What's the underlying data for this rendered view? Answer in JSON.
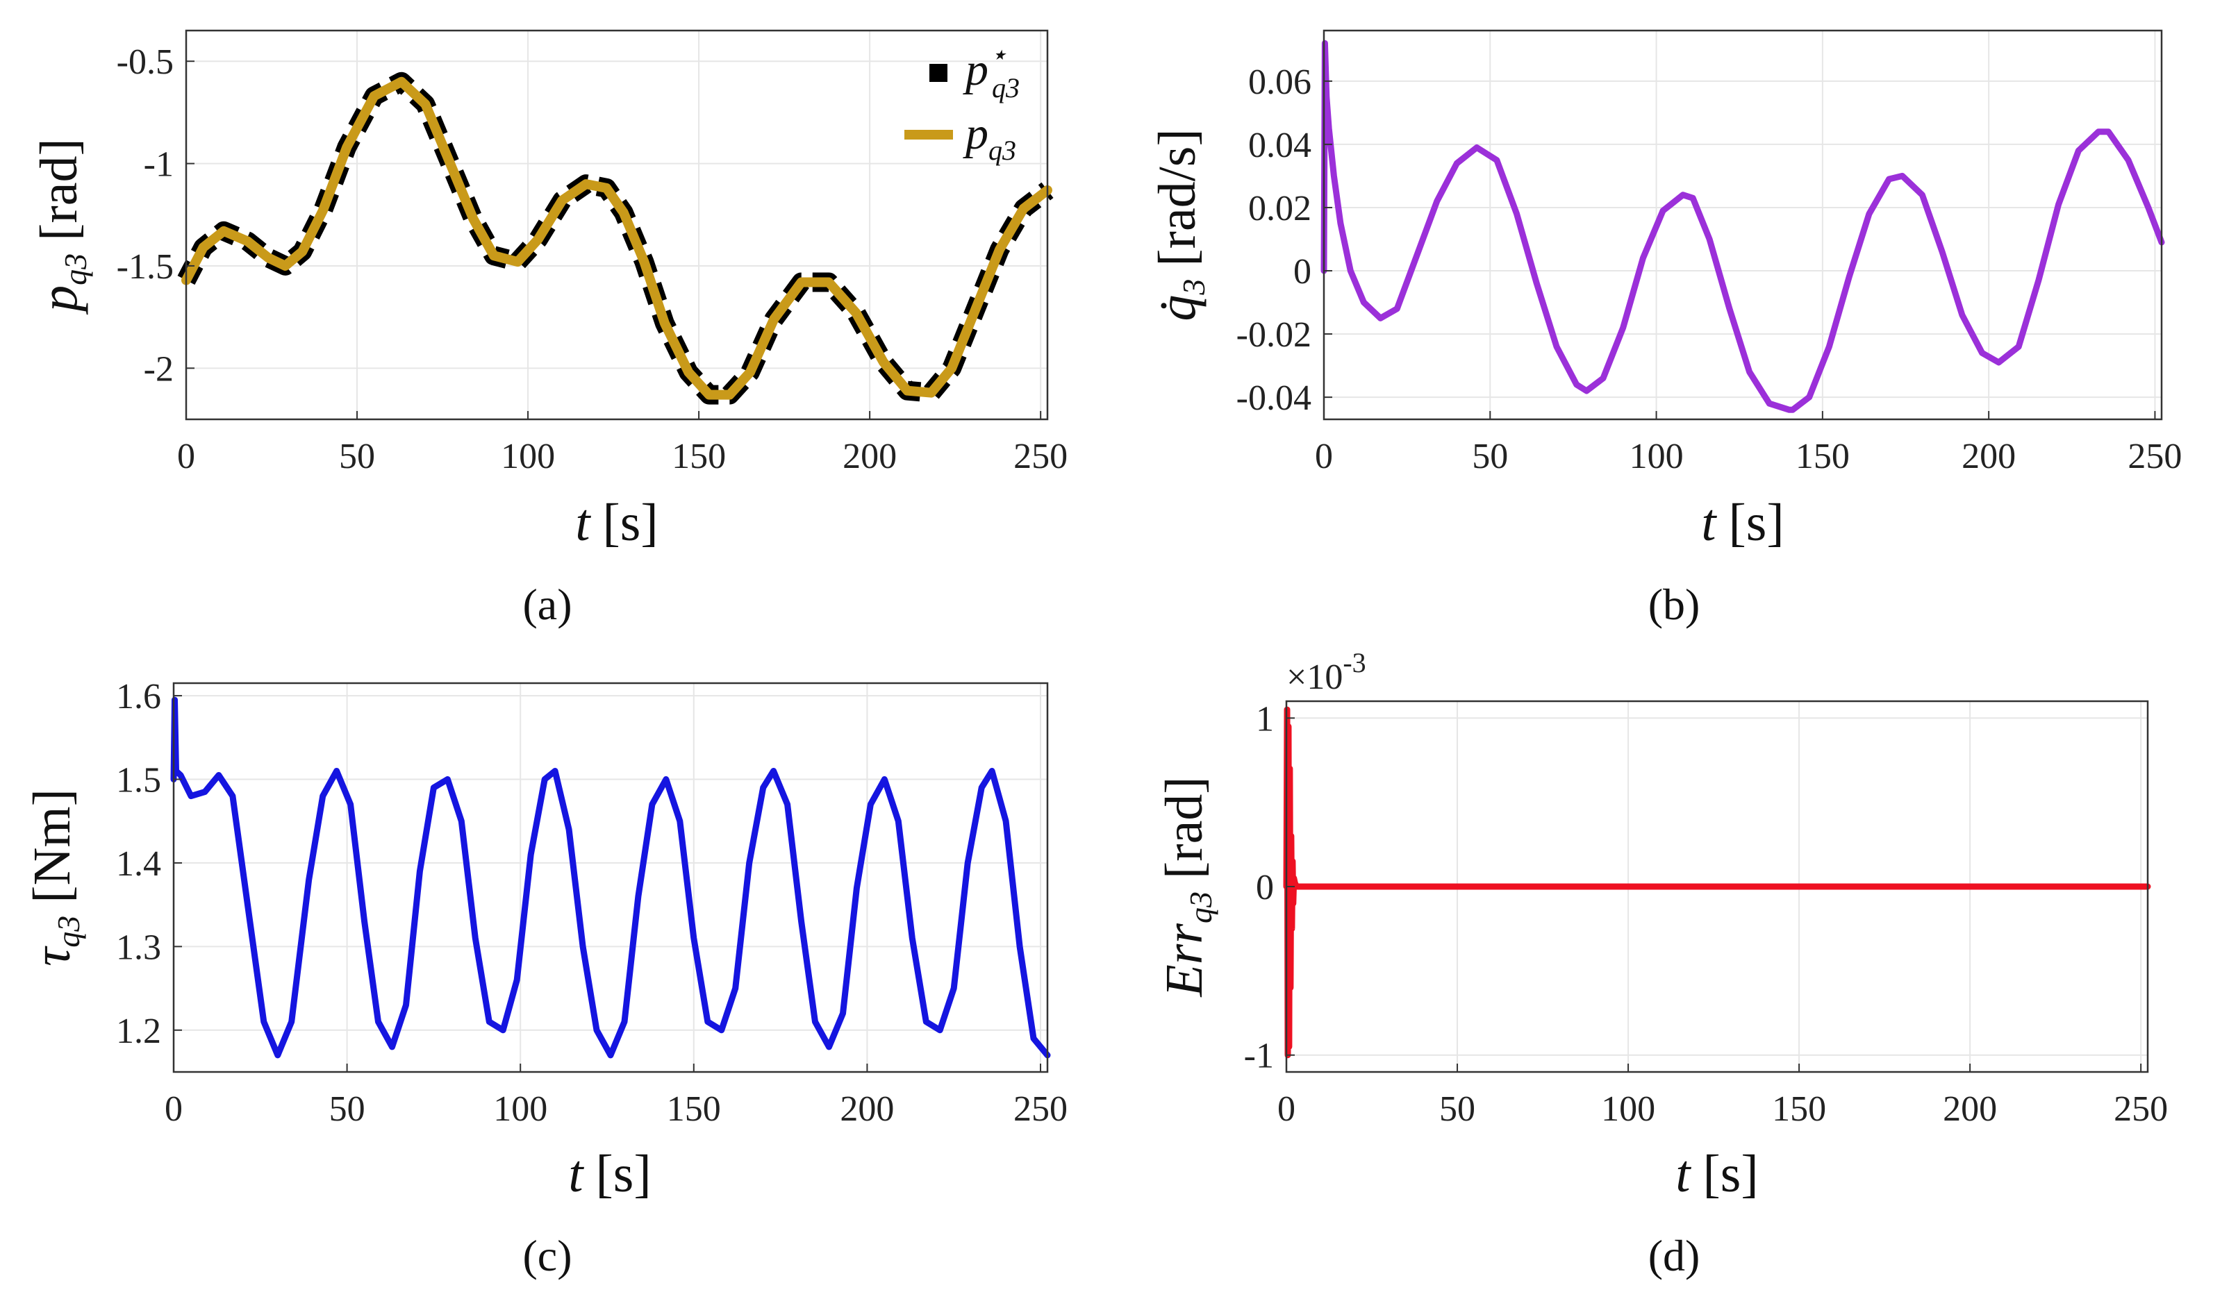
{
  "figure": {
    "captions": [
      "(a)",
      "(b)",
      "(c)",
      "(d)"
    ]
  },
  "chart_data": [
    {
      "id": "a",
      "type": "line",
      "caption": "(a)",
      "xlabel": "t [s]",
      "xlabel_var": "t",
      "xlabel_unit": "[s]",
      "ylabel": "p_q3 [rad]",
      "ylabel_var": "p",
      "ylabel_sub": "q3",
      "ylabel_unit": "[rad]",
      "xlim": [
        0,
        252
      ],
      "ylim": [
        -2.25,
        -0.35
      ],
      "xticks": [
        0,
        50,
        100,
        150,
        200,
        250
      ],
      "xtick_labels": [
        "0",
        "50",
        "100",
        "150",
        "200",
        "250"
      ],
      "yticks": [
        -0.5,
        -1,
        -1.5,
        -2
      ],
      "ytick_labels": [
        "-0.5",
        "-1",
        "-1.5",
        "-2"
      ],
      "grid": true,
      "legend_position": "top-right",
      "legend": [
        {
          "label": "p",
          "sub": "q3",
          "sup": "⋆",
          "style": "black dashed"
        },
        {
          "label": "p",
          "sub": "q3",
          "sup": "",
          "style": "gold solid"
        }
      ],
      "series": [
        {
          "name": "p*_q3 (reference)",
          "color": "#000000",
          "dashed": true,
          "x": [
            0,
            5,
            11,
            18,
            24,
            29,
            34,
            40,
            47,
            55,
            63,
            70,
            77,
            84,
            90,
            97,
            103,
            110,
            117,
            123,
            128,
            134,
            140,
            147,
            153,
            159,
            165,
            172,
            180,
            188,
            196,
            204,
            211,
            218,
            224,
            231,
            238,
            245,
            252
          ],
          "y": [
            -1.57,
            -1.41,
            -1.33,
            -1.38,
            -1.46,
            -1.5,
            -1.43,
            -1.23,
            -0.92,
            -0.67,
            -0.6,
            -0.71,
            -0.99,
            -1.27,
            -1.45,
            -1.48,
            -1.37,
            -1.18,
            -1.1,
            -1.12,
            -1.24,
            -1.48,
            -1.78,
            -2.02,
            -2.13,
            -2.13,
            -2.02,
            -1.76,
            -1.58,
            -1.58,
            -1.73,
            -1.97,
            -2.11,
            -2.12,
            -2.0,
            -1.71,
            -1.42,
            -1.22,
            -1.13
          ]
        },
        {
          "name": "p_q3",
          "color": "#c99a1a",
          "dashed": false,
          "x": [
            0,
            5,
            11,
            18,
            24,
            29,
            34,
            40,
            47,
            55,
            63,
            70,
            77,
            84,
            90,
            97,
            103,
            110,
            117,
            123,
            128,
            134,
            140,
            147,
            153,
            159,
            165,
            172,
            180,
            188,
            196,
            204,
            211,
            218,
            224,
            231,
            238,
            245,
            252
          ],
          "y": [
            -1.57,
            -1.41,
            -1.33,
            -1.38,
            -1.46,
            -1.5,
            -1.43,
            -1.23,
            -0.92,
            -0.67,
            -0.6,
            -0.71,
            -0.99,
            -1.27,
            -1.45,
            -1.48,
            -1.37,
            -1.18,
            -1.1,
            -1.12,
            -1.24,
            -1.48,
            -1.78,
            -2.02,
            -2.13,
            -2.13,
            -2.02,
            -1.76,
            -1.58,
            -1.58,
            -1.73,
            -1.97,
            -2.11,
            -2.12,
            -2.0,
            -1.71,
            -1.42,
            -1.22,
            -1.13
          ]
        }
      ]
    },
    {
      "id": "b",
      "type": "line",
      "caption": "(b)",
      "xlabel": "t [s]",
      "xlabel_var": "t",
      "xlabel_unit": "[s]",
      "ylabel": "q̇3 [rad/s]",
      "ylabel_var": "q̇",
      "ylabel_sub": "3",
      "ylabel_unit": "[rad/s]",
      "xlim": [
        0,
        252
      ],
      "ylim": [
        -0.047,
        0.076
      ],
      "xticks": [
        0,
        50,
        100,
        150,
        200,
        250
      ],
      "xtick_labels": [
        "0",
        "50",
        "100",
        "150",
        "200",
        "250"
      ],
      "yticks": [
        0.06,
        0.04,
        0.02,
        0,
        -0.02,
        -0.04
      ],
      "ytick_labels": [
        "0.06",
        "0.04",
        "0.02",
        "0",
        "-0.02",
        "-0.04"
      ],
      "grid": true,
      "series": [
        {
          "name": "q̇3",
          "color": "#9b30d9",
          "dashed": false,
          "x": [
            0,
            0.3,
            0.8,
            1.5,
            3,
            5,
            8,
            12,
            17,
            22,
            28,
            34,
            40,
            46,
            52,
            58,
            64,
            70,
            76,
            79,
            84,
            90,
            96,
            102,
            108,
            111,
            116,
            122,
            128,
            134,
            140,
            141,
            146,
            152,
            158,
            164,
            170,
            174,
            180,
            186,
            192,
            198,
            203,
            209,
            215,
            221,
            227,
            233,
            236,
            242,
            248,
            252
          ],
          "y": [
            0.0,
            0.072,
            0.055,
            0.045,
            0.03,
            0.015,
            0.0,
            -0.01,
            -0.015,
            -0.012,
            0.005,
            0.022,
            0.034,
            0.039,
            0.035,
            0.018,
            -0.004,
            -0.024,
            -0.036,
            -0.038,
            -0.034,
            -0.018,
            0.004,
            0.019,
            0.024,
            0.023,
            0.01,
            -0.012,
            -0.032,
            -0.042,
            -0.044,
            -0.044,
            -0.04,
            -0.024,
            -0.002,
            0.018,
            0.029,
            0.03,
            0.024,
            0.006,
            -0.014,
            -0.026,
            -0.029,
            -0.024,
            -0.003,
            0.021,
            0.038,
            0.044,
            0.044,
            0.035,
            0.02,
            0.009
          ]
        }
      ]
    },
    {
      "id": "c",
      "type": "line",
      "caption": "(c)",
      "xlabel": "t [s]",
      "xlabel_var": "t",
      "xlabel_unit": "[s]",
      "ylabel": "τq3 [Nm]",
      "ylabel_var": "τ",
      "ylabel_sub": "q3",
      "ylabel_unit": "[Nm]",
      "xlim": [
        0,
        252
      ],
      "ylim": [
        1.15,
        1.615
      ],
      "xticks": [
        0,
        50,
        100,
        150,
        200,
        250
      ],
      "xtick_labels": [
        "0",
        "50",
        "100",
        "150",
        "200",
        "250"
      ],
      "yticks": [
        1.6,
        1.5,
        1.4,
        1.3,
        1.2
      ],
      "ytick_labels": [
        "1.6",
        "1.5",
        "1.4",
        "1.3",
        "1.2"
      ],
      "grid": true,
      "series": [
        {
          "name": "τq3",
          "color": "#1515e0",
          "dashed": false,
          "x": [
            0,
            0.3,
            0.7,
            2,
            5,
            9,
            13,
            17,
            22,
            26,
            30,
            34,
            39,
            43,
            47,
            51,
            55,
            59,
            63,
            67,
            71,
            75,
            79,
            83,
            87,
            91,
            95,
            99,
            103,
            107,
            110,
            114,
            118,
            122,
            126,
            130,
            134,
            138,
            142,
            146,
            150,
            154,
            158,
            162,
            166,
            170,
            173,
            177,
            181,
            185,
            189,
            193,
            197,
            201,
            205,
            209,
            213,
            217,
            221,
            225,
            229,
            233,
            236,
            240,
            244,
            248,
            252
          ],
          "y": [
            1.5,
            1.595,
            1.51,
            1.505,
            1.48,
            1.485,
            1.505,
            1.48,
            1.33,
            1.21,
            1.17,
            1.21,
            1.38,
            1.48,
            1.51,
            1.47,
            1.33,
            1.21,
            1.18,
            1.23,
            1.39,
            1.49,
            1.5,
            1.45,
            1.31,
            1.21,
            1.2,
            1.26,
            1.41,
            1.5,
            1.51,
            1.44,
            1.3,
            1.2,
            1.17,
            1.21,
            1.36,
            1.47,
            1.5,
            1.45,
            1.31,
            1.21,
            1.2,
            1.25,
            1.4,
            1.49,
            1.51,
            1.47,
            1.33,
            1.21,
            1.18,
            1.22,
            1.37,
            1.47,
            1.5,
            1.45,
            1.31,
            1.21,
            1.2,
            1.25,
            1.4,
            1.49,
            1.51,
            1.45,
            1.3,
            1.19,
            1.17
          ]
        }
      ]
    },
    {
      "id": "d",
      "type": "line",
      "caption": "(d)",
      "xlabel": "t [s]",
      "xlabel_var": "t",
      "xlabel_unit": "[s]",
      "ylabel": "Errq3 [rad]",
      "ylabel_var": "Err",
      "ylabel_sub": "q3",
      "ylabel_unit": "[rad]",
      "xlim": [
        0,
        252
      ],
      "ylim": [
        -1.1,
        1.1
      ],
      "xticks": [
        0,
        50,
        100,
        150,
        200,
        250
      ],
      "xtick_labels": [
        "0",
        "50",
        "100",
        "150",
        "200",
        "250"
      ],
      "yticks": [
        1,
        0,
        -1
      ],
      "ytick_labels": [
        "1",
        "0",
        "-1"
      ],
      "exponent_label": "×10",
      "exponent_power": "-3",
      "grid": true,
      "series": [
        {
          "name": "Errq3",
          "color": "#ee1122",
          "dashed": false,
          "x": [
            0,
            0.2,
            0.4,
            0.6,
            0.8,
            1.0,
            1.2,
            1.4,
            1.6,
            1.8,
            2.0,
            2.2,
            2.5,
            3,
            4,
            6,
            10,
            50,
            100,
            150,
            200,
            250,
            252
          ],
          "y": [
            0,
            1.05,
            -1.0,
            0.95,
            -0.95,
            0.7,
            -0.6,
            0.3,
            -0.25,
            0.15,
            -0.1,
            0.05,
            0.02,
            0,
            0,
            0,
            0,
            0,
            0,
            0,
            0,
            0,
            0
          ]
        }
      ]
    }
  ]
}
